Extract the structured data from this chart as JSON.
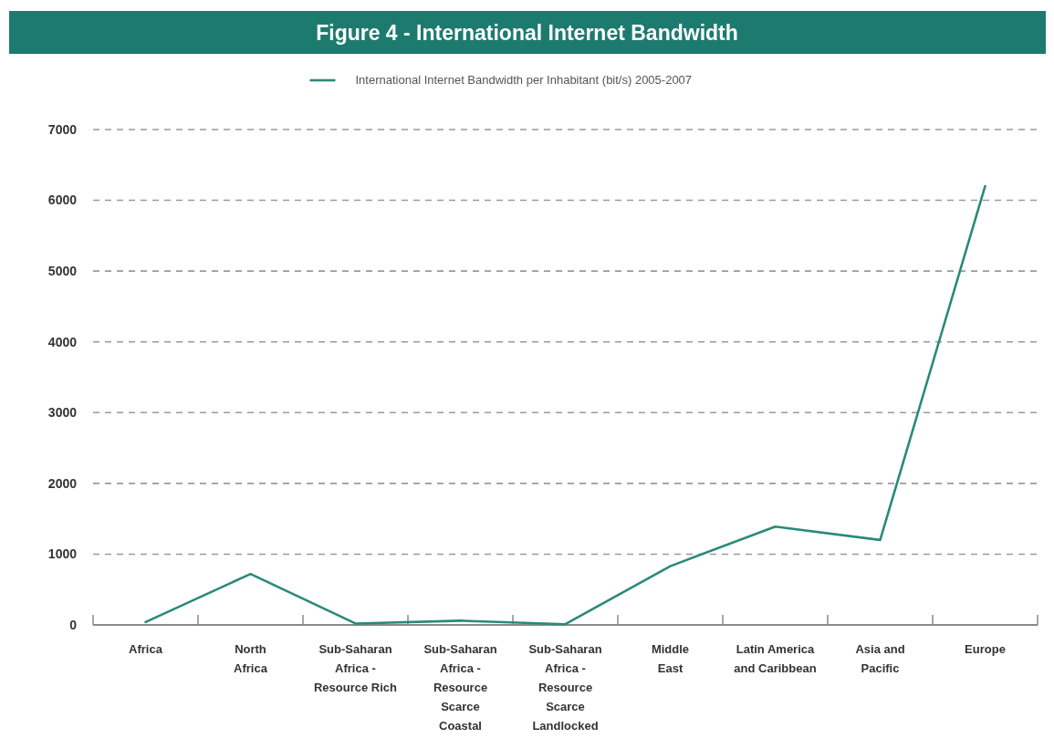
{
  "chart_data": {
    "type": "line",
    "title": "Figure 4 - International Internet Bandwidth",
    "categories": [
      "Africa",
      "North\nAfrica",
      "Sub-Saharan\nAfrica -\nResource Rich",
      "Sub-Saharan\nAfrica -\nResource\nScarce\nCoastal",
      "Sub-Saharan\nAfrica -\nResource\nScarce\nLandlocked",
      "Middle\nEast",
      "Latin America\nand Caribbean",
      "Asia and\nPacific",
      "Europe"
    ],
    "series": [
      {
        "name": "International Internet Bandwidth per Inhabitant (bit/s) 2005-2007",
        "color": "#2a8a78",
        "values": [
          40,
          720,
          20,
          60,
          10,
          830,
          1390,
          1200,
          6200
        ]
      }
    ],
    "ylim": [
      0,
      7000
    ],
    "yticks": [
      0,
      1000,
      2000,
      3000,
      4000,
      5000,
      6000,
      7000
    ],
    "grid": "y",
    "legend": "top",
    "marker": "none",
    "line_style": "solid"
  }
}
